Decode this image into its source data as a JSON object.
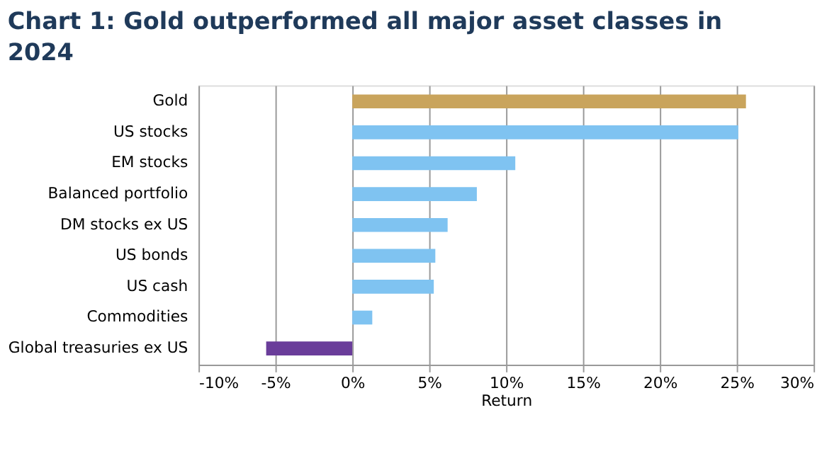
{
  "chart_data": {
    "type": "bar",
    "orientation": "horizontal",
    "title": "Chart 1: Gold outperformed all major asset classes in 2024",
    "xlabel": "Return",
    "categories": [
      "Gold",
      "US stocks",
      "EM stocks",
      "Balanced portfolio",
      "DM stocks ex US",
      "US bonds",
      "US cash",
      "Commodities",
      "Global treasuries ex US"
    ],
    "values": [
      25.6,
      25.1,
      10.6,
      8.1,
      6.2,
      5.4,
      5.3,
      1.3,
      -5.6
    ],
    "colors": [
      "#c9a45c",
      "#7fc3f1",
      "#7fc3f1",
      "#7fc3f1",
      "#7fc3f1",
      "#7fc3f1",
      "#7fc3f1",
      "#7fc3f1",
      "#6a3d9a"
    ],
    "xlim": [
      -10,
      30
    ],
    "xticks": [
      {
        "value": -10,
        "label": "-10%"
      },
      {
        "value": -5,
        "label": "-5%"
      },
      {
        "value": 0,
        "label": "0%"
      },
      {
        "value": 5,
        "label": "5%"
      },
      {
        "value": 10,
        "label": "10%"
      },
      {
        "value": 15,
        "label": "15%"
      },
      {
        "value": 20,
        "label": "20%"
      },
      {
        "value": 25,
        "label": "25%"
      },
      {
        "value": 30,
        "label": "30%"
      }
    ],
    "grid": "x"
  }
}
